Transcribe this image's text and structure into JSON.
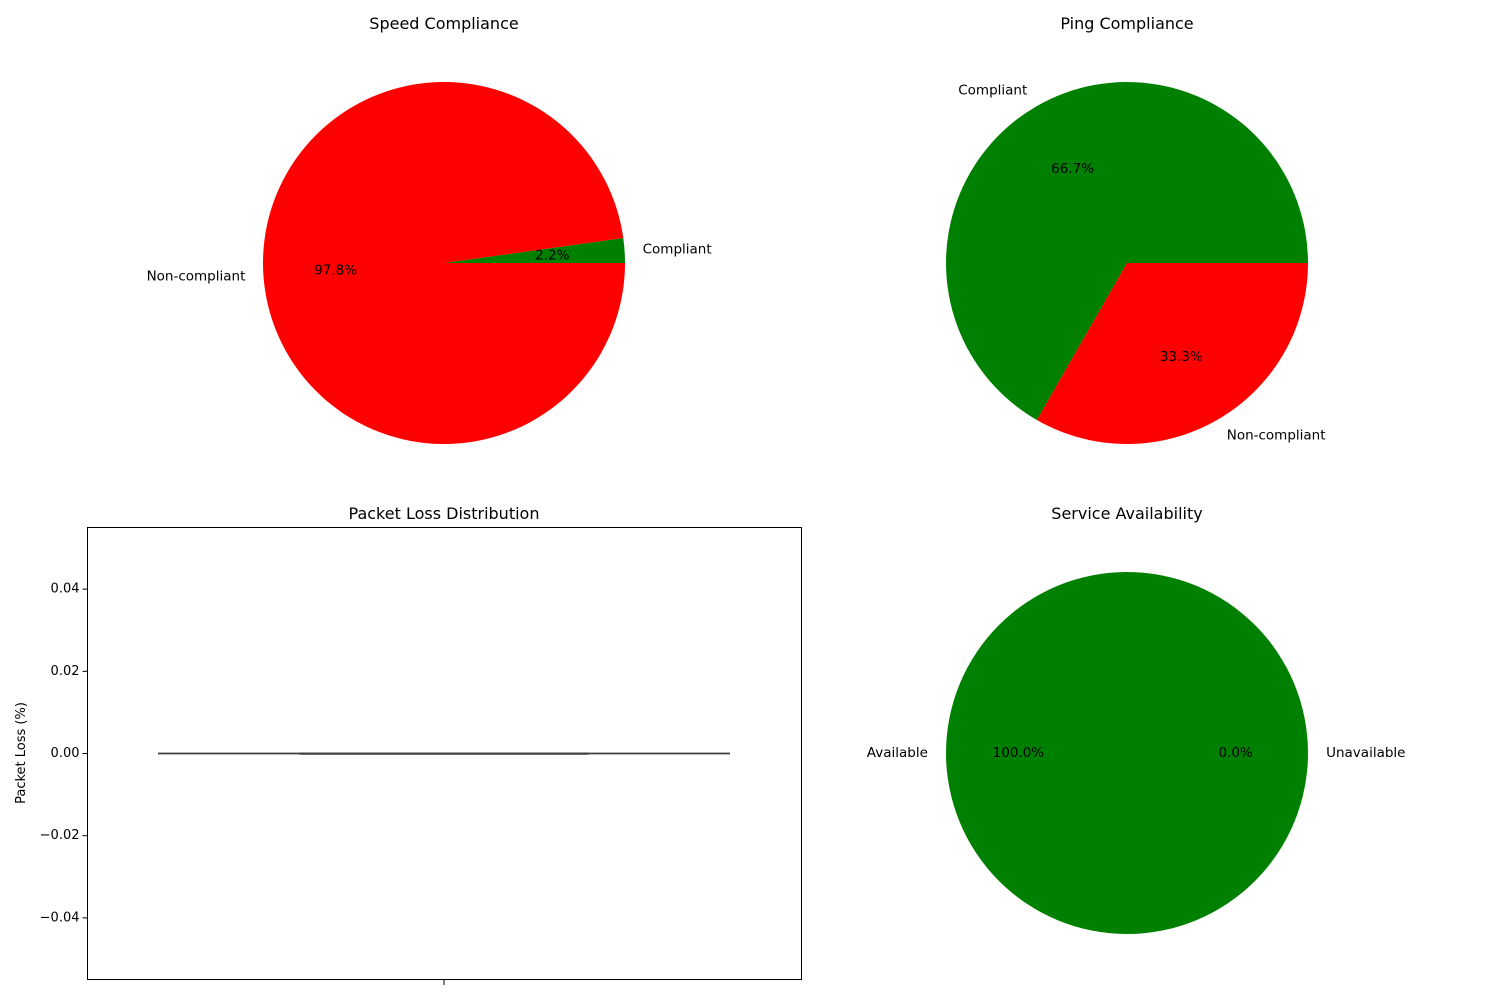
{
  "chart_data": [
    {
      "type": "pie",
      "title": "Speed Compliance",
      "labels": [
        "Compliant",
        "Non-compliant"
      ],
      "values": [
        2.2,
        97.8
      ],
      "pct_labels": [
        "2.2%",
        "97.8%"
      ],
      "colors": [
        "#008000",
        "#ff0000"
      ],
      "start_angle": 0
    },
    {
      "type": "pie",
      "title": "Ping Compliance",
      "labels": [
        "Compliant",
        "Non-compliant"
      ],
      "values": [
        66.7,
        33.3
      ],
      "pct_labels": [
        "66.7%",
        "33.3%"
      ],
      "colors": [
        "#008000",
        "#ff0000"
      ],
      "start_angle": 0
    },
    {
      "type": "box",
      "title": "Packet Loss Distribution",
      "ylabel": "Packet Loss (%)",
      "ylim": [
        -0.055,
        0.055
      ],
      "yticks": [
        -0.04,
        -0.02,
        0.0,
        0.02,
        0.04
      ],
      "ytick_labels": [
        "−0.04",
        "−0.02",
        "0.00",
        "0.02",
        "0.04"
      ],
      "box": {
        "min": 0,
        "q1": 0,
        "median": 0,
        "q3": 0,
        "max": 0
      }
    },
    {
      "type": "pie",
      "title": "Service Availability",
      "labels": [
        "Available",
        "Unavailable"
      ],
      "values": [
        100.0,
        0.0
      ],
      "pct_labels": [
        "100.0%",
        "0.0%"
      ],
      "colors": [
        "#008000",
        "#ff0000"
      ],
      "start_angle": 0
    }
  ]
}
